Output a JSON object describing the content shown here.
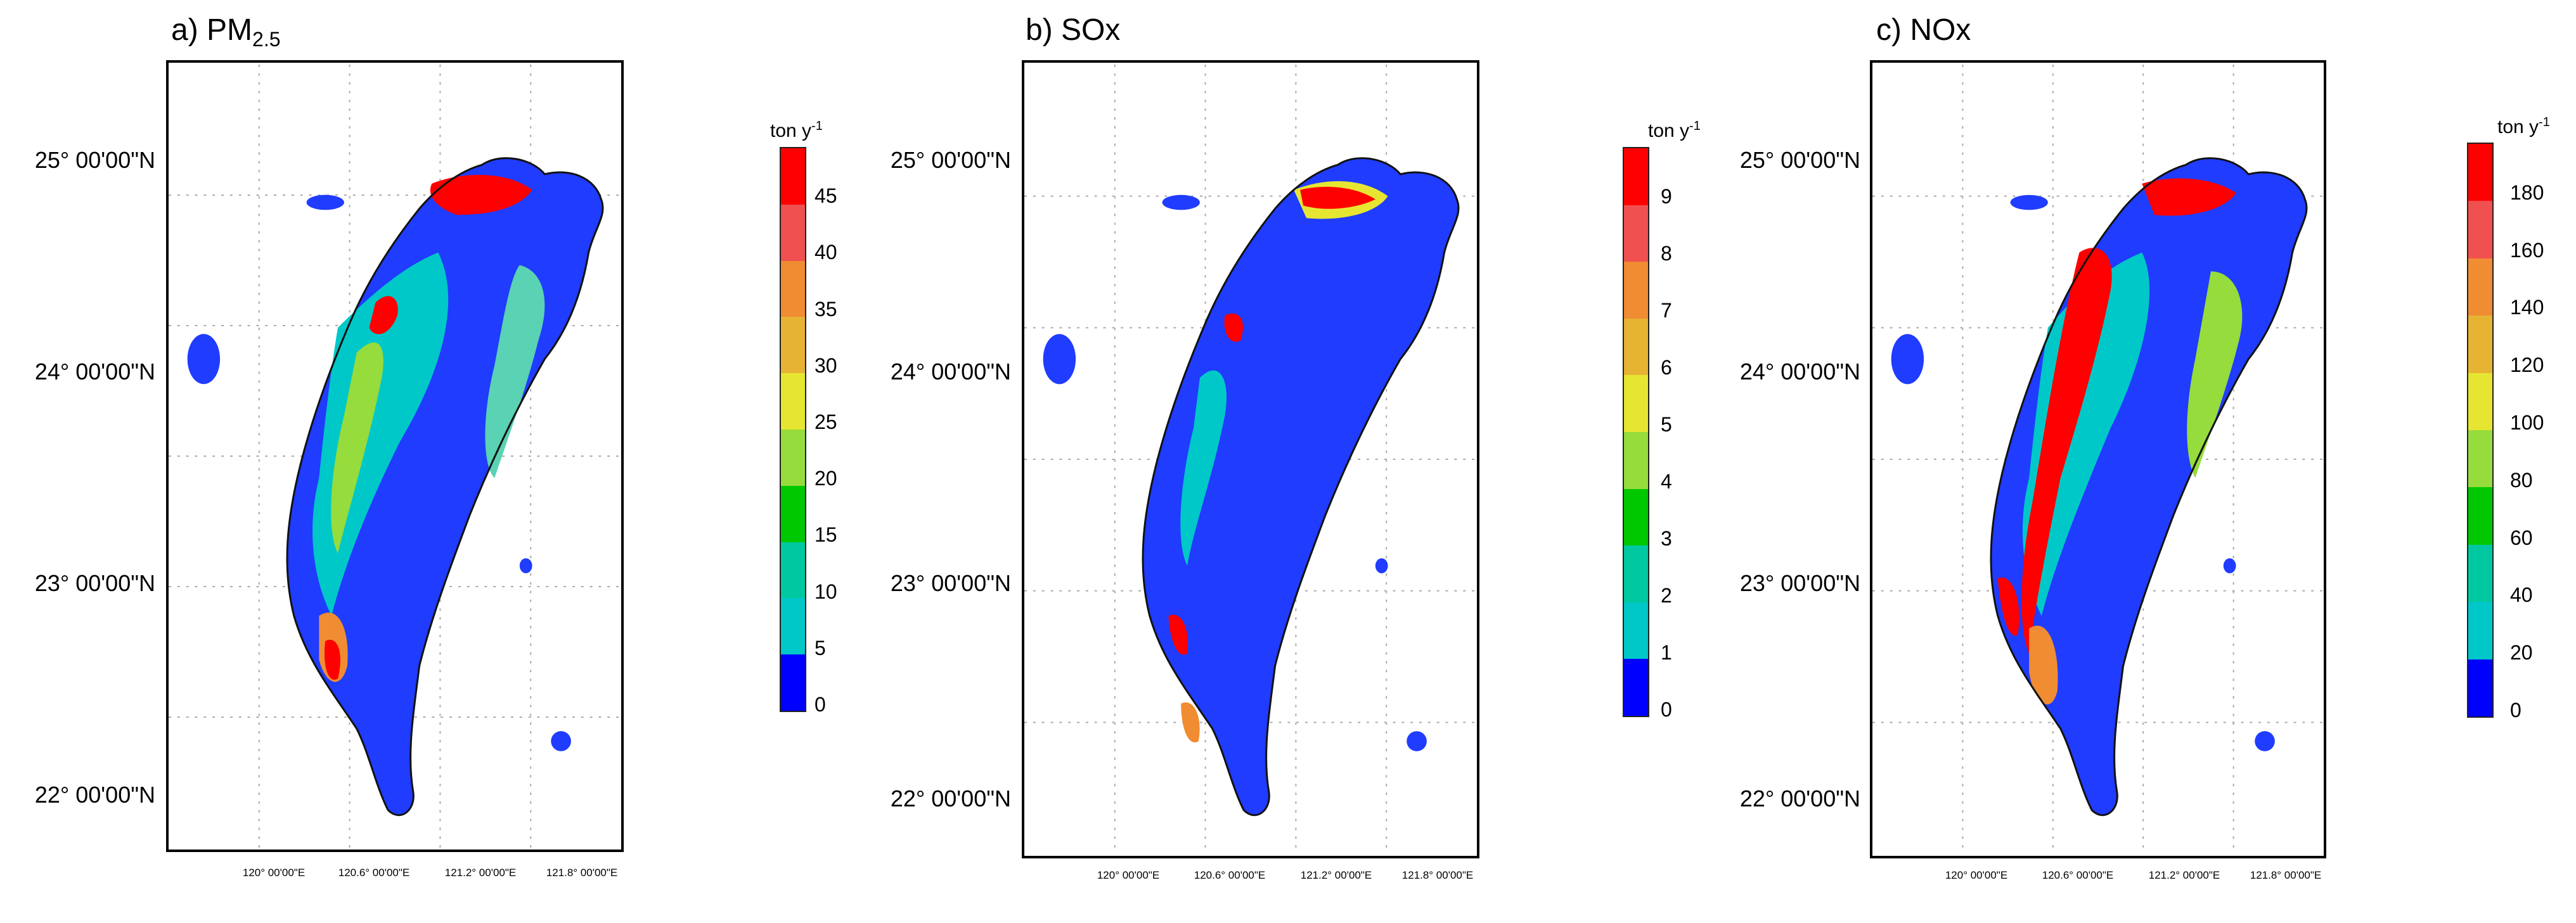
{
  "panels": [
    {
      "id": "pm25",
      "title_prefix": "a) PM",
      "title_sub": "2.5",
      "title_suffix": "",
      "unit": "ton y",
      "unit_exp": "-1",
      "ticks": [
        "0",
        "5",
        "10",
        "15",
        "20",
        "25",
        "30",
        "35",
        "40",
        "45"
      ]
    },
    {
      "id": "sox",
      "title_prefix": "b) SOx",
      "title_sub": "",
      "title_suffix": "",
      "unit": "ton y",
      "unit_exp": "-1",
      "ticks": [
        "0",
        "1",
        "2",
        "3",
        "4",
        "5",
        "6",
        "7",
        "8",
        "9"
      ]
    },
    {
      "id": "nox",
      "title_prefix": "c) NOx",
      "title_sub": "",
      "title_suffix": "",
      "unit": "ton y",
      "unit_exp": "-1",
      "ticks": [
        "0",
        "20",
        "40",
        "60",
        "80",
        "100",
        "120",
        "140",
        "160",
        "180"
      ]
    }
  ],
  "lat_labels": [
    "25° 00'00\"N",
    "24° 00'00\"N",
    "23° 00'00\"N",
    "22° 00'00\"N"
  ],
  "lon_labels": [
    "120° 00'00\"E",
    "120.6° 00'00\"E",
    "121.2° 00'00\"E",
    "121.8° 00'00\"E"
  ],
  "colormap": [
    "#0000ff",
    "#00c8c8",
    "#00c8a0",
    "#00c800",
    "#96dc3c",
    "#e6e632",
    "#e6b432",
    "#f08c32",
    "#f05050",
    "#ff0000"
  ]
}
